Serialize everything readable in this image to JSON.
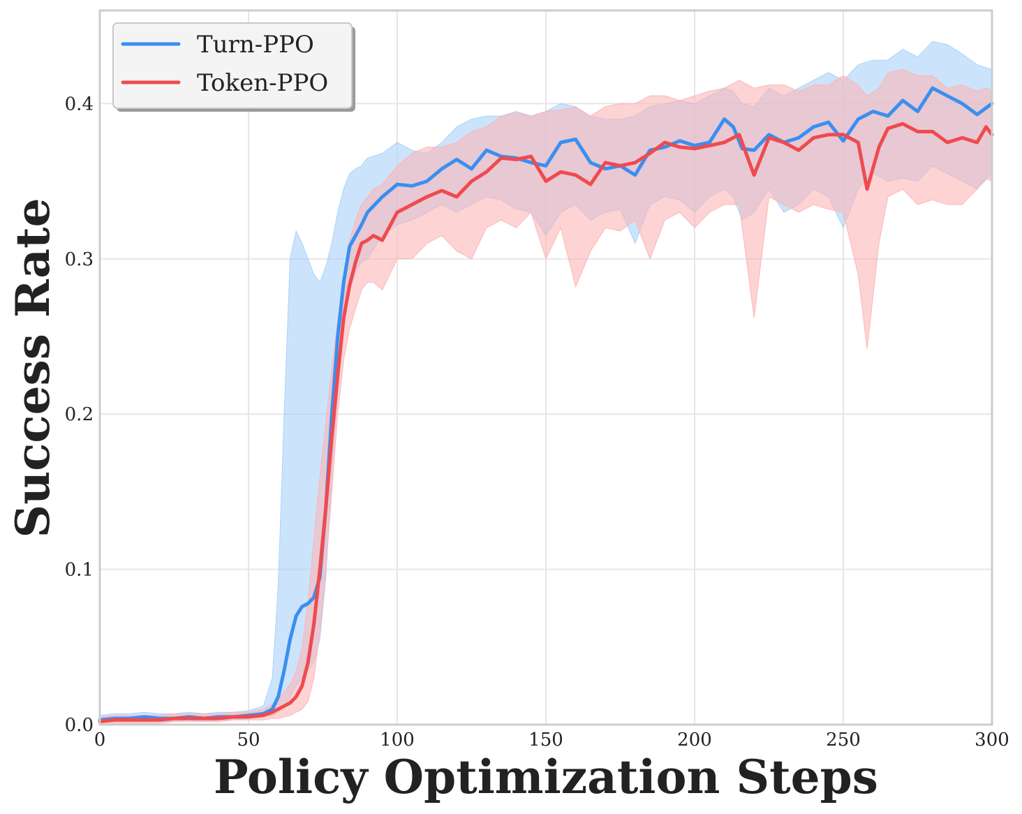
{
  "chart_data": {
    "type": "line",
    "xlabel": "Policy Optimization Steps",
    "ylabel": "Success Rate",
    "xlim": [
      0,
      300
    ],
    "ylim": [
      0,
      0.46
    ],
    "xticks": [
      0,
      50,
      100,
      150,
      200,
      250,
      300
    ],
    "yticks": [
      0.0,
      0.1,
      0.2,
      0.3,
      0.4
    ],
    "xtick_labels": [
      "0",
      "50",
      "100",
      "150",
      "200",
      "250",
      "300"
    ],
    "ytick_labels": [
      "0.0",
      "0.1",
      "0.2",
      "0.3",
      "0.4"
    ],
    "grid": true,
    "legend_position": "top-left",
    "series": [
      {
        "name": "Turn-PPO",
        "color": "#3a8ff0",
        "band_color": "#a8d2fa",
        "x": [
          0,
          5,
          10,
          15,
          20,
          25,
          30,
          35,
          40,
          45,
          50,
          55,
          58,
          60,
          62,
          64,
          66,
          68,
          70,
          72,
          74,
          76,
          78,
          80,
          82,
          84,
          86,
          88,
          90,
          95,
          100,
          105,
          110,
          115,
          120,
          125,
          130,
          135,
          140,
          145,
          150,
          155,
          160,
          165,
          170,
          175,
          180,
          185,
          190,
          195,
          200,
          205,
          210,
          213,
          216,
          220,
          225,
          230,
          235,
          240,
          245,
          250,
          255,
          260,
          265,
          270,
          275,
          280,
          285,
          290,
          295,
          300
        ],
        "y": [
          0.003,
          0.004,
          0.004,
          0.005,
          0.004,
          0.004,
          0.005,
          0.004,
          0.005,
          0.005,
          0.006,
          0.007,
          0.01,
          0.018,
          0.035,
          0.055,
          0.07,
          0.076,
          0.078,
          0.082,
          0.095,
          0.14,
          0.2,
          0.25,
          0.285,
          0.308,
          0.315,
          0.322,
          0.33,
          0.34,
          0.348,
          0.347,
          0.35,
          0.358,
          0.364,
          0.358,
          0.37,
          0.366,
          0.365,
          0.362,
          0.36,
          0.375,
          0.377,
          0.362,
          0.358,
          0.36,
          0.354,
          0.37,
          0.372,
          0.376,
          0.373,
          0.375,
          0.39,
          0.385,
          0.371,
          0.37,
          0.38,
          0.375,
          0.378,
          0.385,
          0.388,
          0.376,
          0.39,
          0.395,
          0.392,
          0.402,
          0.395,
          0.41,
          0.405,
          0.4,
          0.393,
          0.4
        ],
        "lower": [
          0.001,
          0.002,
          0.002,
          0.002,
          0.002,
          0.002,
          0.003,
          0.002,
          0.003,
          0.003,
          0.004,
          0.005,
          0.006,
          0.008,
          0.012,
          0.018,
          0.025,
          0.03,
          0.035,
          0.04,
          0.055,
          0.095,
          0.16,
          0.215,
          0.255,
          0.28,
          0.292,
          0.298,
          0.3,
          0.315,
          0.322,
          0.325,
          0.33,
          0.335,
          0.33,
          0.335,
          0.34,
          0.338,
          0.332,
          0.33,
          0.315,
          0.33,
          0.335,
          0.325,
          0.33,
          0.332,
          0.31,
          0.335,
          0.34,
          0.338,
          0.33,
          0.34,
          0.345,
          0.34,
          0.325,
          0.33,
          0.345,
          0.33,
          0.335,
          0.345,
          0.34,
          0.32,
          0.345,
          0.355,
          0.35,
          0.352,
          0.35,
          0.36,
          0.355,
          0.35,
          0.345,
          0.355
        ],
        "upper": [
          0.006,
          0.007,
          0.007,
          0.008,
          0.007,
          0.007,
          0.008,
          0.007,
          0.008,
          0.008,
          0.009,
          0.012,
          0.03,
          0.09,
          0.2,
          0.3,
          0.318,
          0.31,
          0.3,
          0.29,
          0.285,
          0.295,
          0.31,
          0.33,
          0.345,
          0.355,
          0.358,
          0.36,
          0.365,
          0.368,
          0.375,
          0.37,
          0.368,
          0.375,
          0.385,
          0.39,
          0.392,
          0.392,
          0.395,
          0.392,
          0.395,
          0.4,
          0.398,
          0.392,
          0.39,
          0.39,
          0.392,
          0.398,
          0.4,
          0.402,
          0.4,
          0.405,
          0.41,
          0.408,
          0.4,
          0.398,
          0.41,
          0.405,
          0.41,
          0.415,
          0.42,
          0.415,
          0.425,
          0.428,
          0.428,
          0.435,
          0.43,
          0.44,
          0.438,
          0.432,
          0.425,
          0.422
        ]
      },
      {
        "name": "Token-PPO",
        "color": "#f04a4e",
        "band_color": "#fbb6b8",
        "x": [
          0,
          5,
          10,
          15,
          20,
          25,
          30,
          35,
          40,
          45,
          50,
          55,
          58,
          60,
          62,
          64,
          66,
          68,
          70,
          72,
          74,
          76,
          78,
          80,
          82,
          84,
          86,
          88,
          90,
          92,
          95,
          100,
          105,
          110,
          115,
          120,
          125,
          130,
          135,
          140,
          145,
          150,
          155,
          160,
          165,
          170,
          175,
          180,
          185,
          190,
          195,
          200,
          205,
          210,
          215,
          220,
          225,
          230,
          235,
          240,
          245,
          250,
          255,
          258,
          262,
          265,
          270,
          275,
          280,
          285,
          290,
          295,
          298,
          300
        ],
        "y": [
          0.002,
          0.003,
          0.003,
          0.003,
          0.003,
          0.004,
          0.004,
          0.004,
          0.004,
          0.005,
          0.005,
          0.006,
          0.008,
          0.01,
          0.012,
          0.014,
          0.018,
          0.025,
          0.04,
          0.065,
          0.1,
          0.14,
          0.185,
          0.225,
          0.262,
          0.283,
          0.298,
          0.31,
          0.312,
          0.315,
          0.312,
          0.33,
          0.335,
          0.34,
          0.344,
          0.34,
          0.35,
          0.356,
          0.365,
          0.364,
          0.366,
          0.35,
          0.356,
          0.354,
          0.348,
          0.362,
          0.36,
          0.362,
          0.368,
          0.375,
          0.372,
          0.371,
          0.373,
          0.375,
          0.38,
          0.354,
          0.378,
          0.375,
          0.37,
          0.378,
          0.38,
          0.38,
          0.375,
          0.345,
          0.372,
          0.384,
          0.387,
          0.382,
          0.382,
          0.375,
          0.378,
          0.375,
          0.385,
          0.38
        ],
        "lower": [
          0.0,
          0.001,
          0.001,
          0.001,
          0.001,
          0.002,
          0.002,
          0.002,
          0.002,
          0.003,
          0.003,
          0.003,
          0.004,
          0.004,
          0.005,
          0.006,
          0.008,
          0.01,
          0.015,
          0.03,
          0.06,
          0.1,
          0.15,
          0.2,
          0.235,
          0.255,
          0.268,
          0.28,
          0.285,
          0.285,
          0.28,
          0.3,
          0.3,
          0.31,
          0.315,
          0.305,
          0.3,
          0.32,
          0.325,
          0.32,
          0.33,
          0.3,
          0.32,
          0.282,
          0.305,
          0.32,
          0.318,
          0.325,
          0.3,
          0.325,
          0.33,
          0.32,
          0.33,
          0.335,
          0.335,
          0.262,
          0.34,
          0.335,
          0.33,
          0.335,
          0.332,
          0.33,
          0.29,
          0.242,
          0.31,
          0.34,
          0.345,
          0.335,
          0.338,
          0.335,
          0.335,
          0.345,
          0.352,
          0.35
        ],
        "upper": [
          0.005,
          0.006,
          0.006,
          0.006,
          0.006,
          0.007,
          0.007,
          0.007,
          0.007,
          0.008,
          0.008,
          0.01,
          0.013,
          0.017,
          0.021,
          0.026,
          0.034,
          0.05,
          0.08,
          0.12,
          0.16,
          0.195,
          0.23,
          0.26,
          0.29,
          0.312,
          0.325,
          0.335,
          0.34,
          0.345,
          0.348,
          0.36,
          0.368,
          0.372,
          0.372,
          0.375,
          0.382,
          0.385,
          0.392,
          0.394,
          0.392,
          0.395,
          0.396,
          0.398,
          0.392,
          0.398,
          0.4,
          0.4,
          0.405,
          0.405,
          0.402,
          0.405,
          0.408,
          0.41,
          0.415,
          0.41,
          0.412,
          0.412,
          0.408,
          0.412,
          0.412,
          0.418,
          0.412,
          0.405,
          0.41,
          0.42,
          0.422,
          0.418,
          0.418,
          0.41,
          0.412,
          0.408,
          0.41,
          0.408
        ]
      }
    ]
  }
}
